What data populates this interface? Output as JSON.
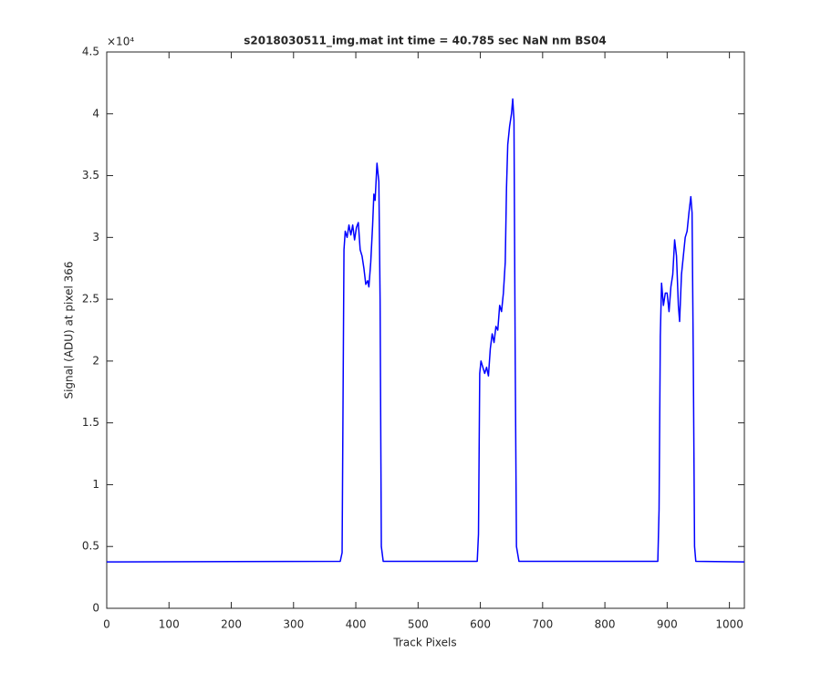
{
  "chart_data": {
    "type": "line",
    "title": "s2018030511_img.mat int time = 40.785 sec  NaN nm BS04",
    "xlabel": "Track Pixels",
    "ylabel": "Signal (ADU) at pixel 366",
    "y_multiplier": "×10⁴",
    "xlim": [
      0,
      1024
    ],
    "xticks": [
      0,
      100,
      200,
      300,
      400,
      500,
      600,
      700,
      800,
      900,
      1000
    ],
    "ylim": [
      0,
      45000
    ],
    "yticks": [
      {
        "value": 0,
        "label": "0"
      },
      {
        "value": 5000,
        "label": "0.5"
      },
      {
        "value": 10000,
        "label": "1"
      },
      {
        "value": 15000,
        "label": "1.5"
      },
      {
        "value": 20000,
        "label": "2"
      },
      {
        "value": 25000,
        "label": "2.5"
      },
      {
        "value": 30000,
        "label": "3"
      },
      {
        "value": 35000,
        "label": "3.5"
      },
      {
        "value": 40000,
        "label": "4"
      },
      {
        "value": 45000,
        "label": "4.5"
      }
    ],
    "grid": false,
    "series": [
      {
        "color": "#0000ff",
        "x": [
          0,
          375,
          378,
          381,
          383,
          386,
          389,
          392,
          395,
          398,
          401,
          404,
          407,
          410,
          413,
          416,
          419,
          421,
          424,
          427,
          429,
          431,
          434,
          437,
          439,
          441,
          444,
          595,
          597,
          599,
          601,
          604,
          607,
          610,
          613,
          616,
          619,
          622,
          625,
          628,
          631,
          634,
          637,
          640,
          642,
          644,
          647,
          650,
          652,
          654,
          656,
          658,
          662,
          885,
          887,
          889,
          891,
          894,
          897,
          900,
          903,
          906,
          909,
          912,
          915,
          918,
          920,
          923,
          926,
          929,
          932,
          935,
          938,
          940,
          942,
          944,
          946,
          1024
        ],
        "values": [
          3750,
          3800,
          4500,
          29000,
          30500,
          30000,
          31000,
          30200,
          31000,
          29800,
          30800,
          31200,
          29000,
          28500,
          27500,
          26200,
          26500,
          26000,
          28000,
          31000,
          33500,
          33000,
          36000,
          34500,
          25000,
          5000,
          3800,
          3800,
          6000,
          19000,
          20000,
          19500,
          19000,
          19500,
          18800,
          21000,
          22200,
          21500,
          22800,
          22500,
          24500,
          24000,
          25500,
          28000,
          34000,
          37500,
          39000,
          40000,
          41200,
          39500,
          20000,
          5000,
          3800,
          3800,
          8000,
          22000,
          26300,
          24500,
          25500,
          25500,
          24000,
          26000,
          27000,
          29800,
          28500,
          24500,
          23200,
          27000,
          28500,
          30000,
          30500,
          32000,
          33300,
          32000,
          20000,
          5000,
          3800,
          3750
        ]
      }
    ]
  }
}
